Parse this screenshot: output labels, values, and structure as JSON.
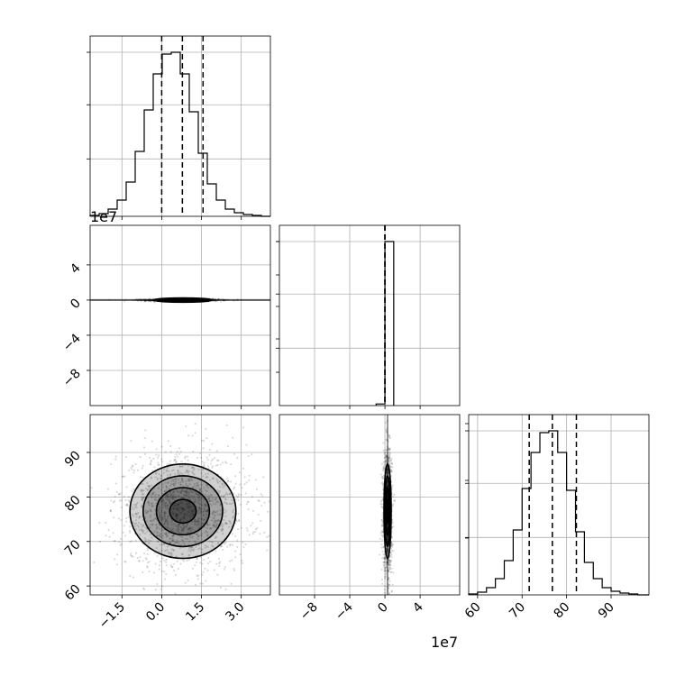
{
  "chart_data": {
    "type": "corner",
    "title": "",
    "params": [
      {
        "key": "p0",
        "offset_label": "",
        "range": [
          -2.7,
          4.1
        ],
        "ticks": [
          -1.5,
          0.0,
          1.5,
          3.0
        ],
        "tick_labels": [
          "−1.5",
          "0.0",
          "1.5",
          "3.0"
        ],
        "quantiles": [
          0.0,
          0.78,
          1.56
        ]
      },
      {
        "key": "p1",
        "offset_label": "1e7",
        "range": [
          -12,
          8.5
        ],
        "ticks": [
          -8,
          -4,
          0,
          4
        ],
        "tick_labels": [
          "−8",
          "−4",
          "0",
          "4"
        ],
        "quantiles": [
          0.0,
          0.0,
          0.0
        ]
      },
      {
        "key": "p2",
        "offset_label": "",
        "range": [
          58,
          98.5
        ],
        "ticks": [
          60,
          70,
          80,
          90
        ],
        "tick_labels": [
          "60",
          "70",
          "80",
          "90"
        ],
        "quantiles": [
          71.6,
          76.8,
          82.2
        ]
      }
    ],
    "hist1d": [
      {
        "param": "p0",
        "bin_edges": [
          -2.7,
          -2.36,
          -2.02,
          -1.68,
          -1.34,
          -1.0,
          -0.66,
          -0.32,
          0.02,
          0.36,
          0.7,
          1.04,
          1.38,
          1.72,
          2.06,
          2.4,
          2.74,
          3.08,
          3.42,
          3.76,
          4.1
        ],
        "counts": [
          1,
          3,
          8,
          18,
          38,
          72,
          118,
          158,
          180,
          182,
          158,
          116,
          70,
          36,
          18,
          8,
          4,
          2,
          1,
          0
        ]
      },
      {
        "param": "p1",
        "bin_edges": [
          -1.0,
          0.0,
          1.0
        ],
        "counts": [
          1,
          100
        ]
      },
      {
        "param": "p2",
        "bin_edges": [
          58.0,
          60.0,
          62.0,
          64.0,
          66.0,
          68.0,
          70.0,
          72.0,
          74.0,
          76.0,
          78.0,
          80.0,
          82.0,
          84.0,
          86.0,
          88.0,
          90.0,
          92.0,
          94.0,
          96.0,
          98.5
        ],
        "counts": [
          1,
          3,
          8,
          18,
          38,
          72,
          118,
          158,
          180,
          182,
          158,
          116,
          70,
          36,
          18,
          8,
          4,
          2,
          1,
          0
        ]
      }
    ],
    "hist2d": [
      {
        "x": "p0",
        "y": "p1",
        "center": [
          0.8,
          0.0
        ],
        "sigma": [
          0.55,
          0.0
        ]
      },
      {
        "x": "p0",
        "y": "p2",
        "center": [
          0.8,
          76.8
        ],
        "sigma": [
          1.0,
          5.3
        ]
      },
      {
        "x": "p1",
        "y": "p2",
        "center": [
          0.3,
          76.8
        ],
        "sigma": [
          0.2,
          5.3
        ]
      }
    ],
    "grid": true,
    "hist_color": "#000000",
    "quantile_line_style": "dashed"
  }
}
